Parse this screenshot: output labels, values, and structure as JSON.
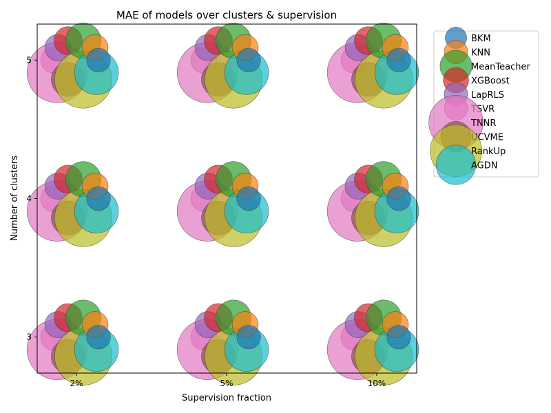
{
  "chart_data": {
    "type": "scatter",
    "title": "MAE of models over clusters & supervision",
    "xlabel": "Supervision fraction",
    "ylabel": "Number of clusters",
    "x_categories": [
      "2%",
      "5%",
      "10%"
    ],
    "y_ticks": [
      3,
      4,
      5
    ],
    "ylim": [
      2.74,
      5.26
    ],
    "grid": false,
    "legend_position": "outside-right",
    "series": [
      {
        "name": "BKM",
        "color": "#1f77b4",
        "mae": 0.05
      },
      {
        "name": "KNN",
        "color": "#ff7f0e",
        "mae": 0.06
      },
      {
        "name": "MeanTeacher",
        "color": "#2ca02c",
        "mae": 0.11
      },
      {
        "name": "XGBoost",
        "color": "#d62728",
        "mae": 0.07
      },
      {
        "name": "LapRLS",
        "color": "#9467bd",
        "mae": 0.06
      },
      {
        "name": "TSVR",
        "color": "#e377c2",
        "mae": 0.06
      },
      {
        "name": "TNNR",
        "color": "#e377c2",
        "mae": 0.32
      },
      {
        "name": "UCVME",
        "color": "#8c564b",
        "mae": 0.1
      },
      {
        "name": "RankUp",
        "color": "#bcbd22",
        "mae": 0.29
      },
      {
        "name": "AGDN",
        "color": "#17becf",
        "mae": 0.17
      }
    ]
  }
}
